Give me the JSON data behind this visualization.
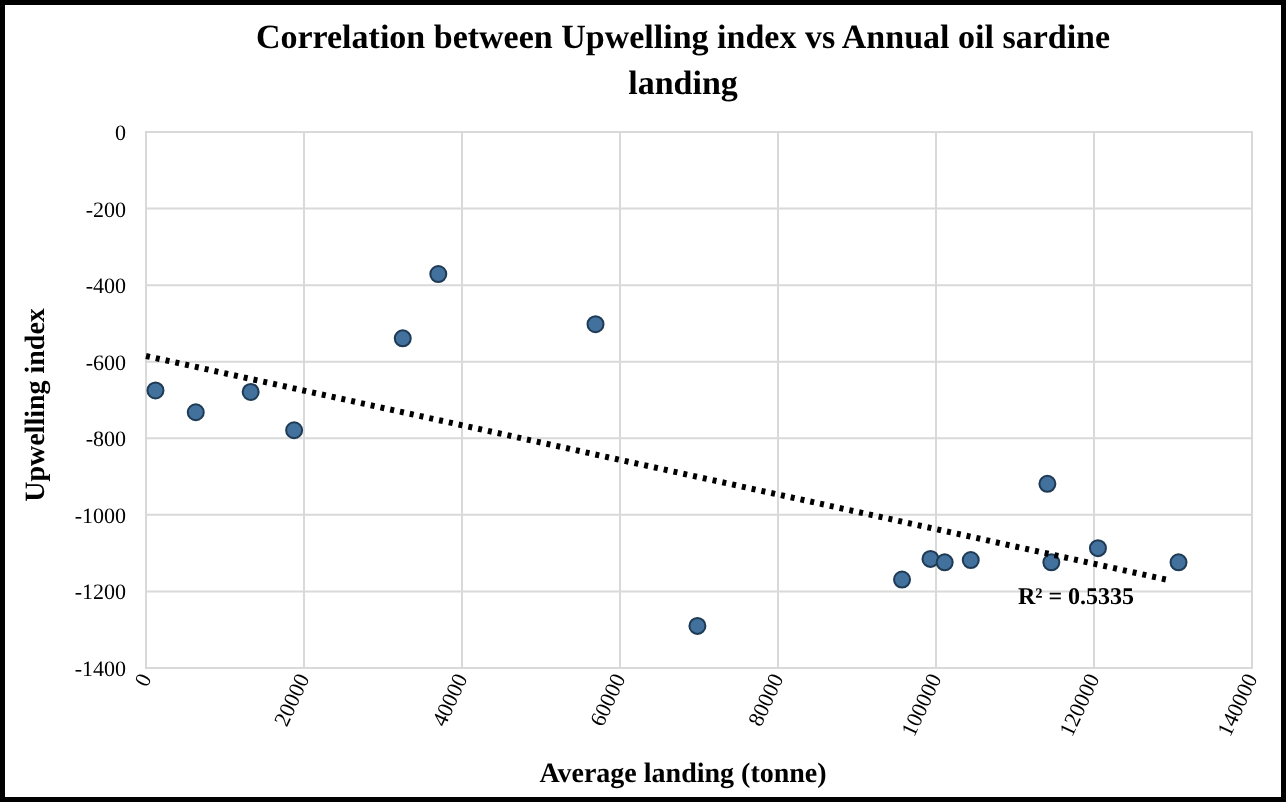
{
  "chart_data": {
    "type": "scatter",
    "title": "Correlation between Upwelling index vs Annual oil sardine landing",
    "xlabel": "Average landing (tonne)",
    "ylabel": "Upwelling index",
    "xlim": [
      0,
      140000
    ],
    "xticks": [
      0,
      20000,
      40000,
      60000,
      80000,
      100000,
      120000,
      140000
    ],
    "ylim": [
      -1400,
      0
    ],
    "yticks": [
      -1400,
      -1200,
      -1000,
      -800,
      -600,
      -400,
      -200,
      0
    ],
    "grid": true,
    "series": [
      {
        "color": "#41719c",
        "marker": "circle",
        "x": [
          1200,
          6300,
          13250,
          18750,
          32500,
          37000,
          56900,
          69800,
          95700,
          99300,
          101100,
          104400,
          114100,
          114600,
          120500,
          130700
        ],
        "values": [
          -675,
          -732,
          -679,
          -779,
          -539,
          -371,
          -502,
          -1290,
          -1169,
          -1115,
          -1124,
          -1118,
          -919,
          -1124,
          -1087,
          -1124
        ]
      },
      {
        "type": "line",
        "color": "#000000",
        "line_style": "dotted",
        "x": [
          0,
          129800
        ],
        "values": [
          -585,
          -1172
        ]
      }
    ],
    "annotations": [
      "R² = 0.5335"
    ]
  }
}
